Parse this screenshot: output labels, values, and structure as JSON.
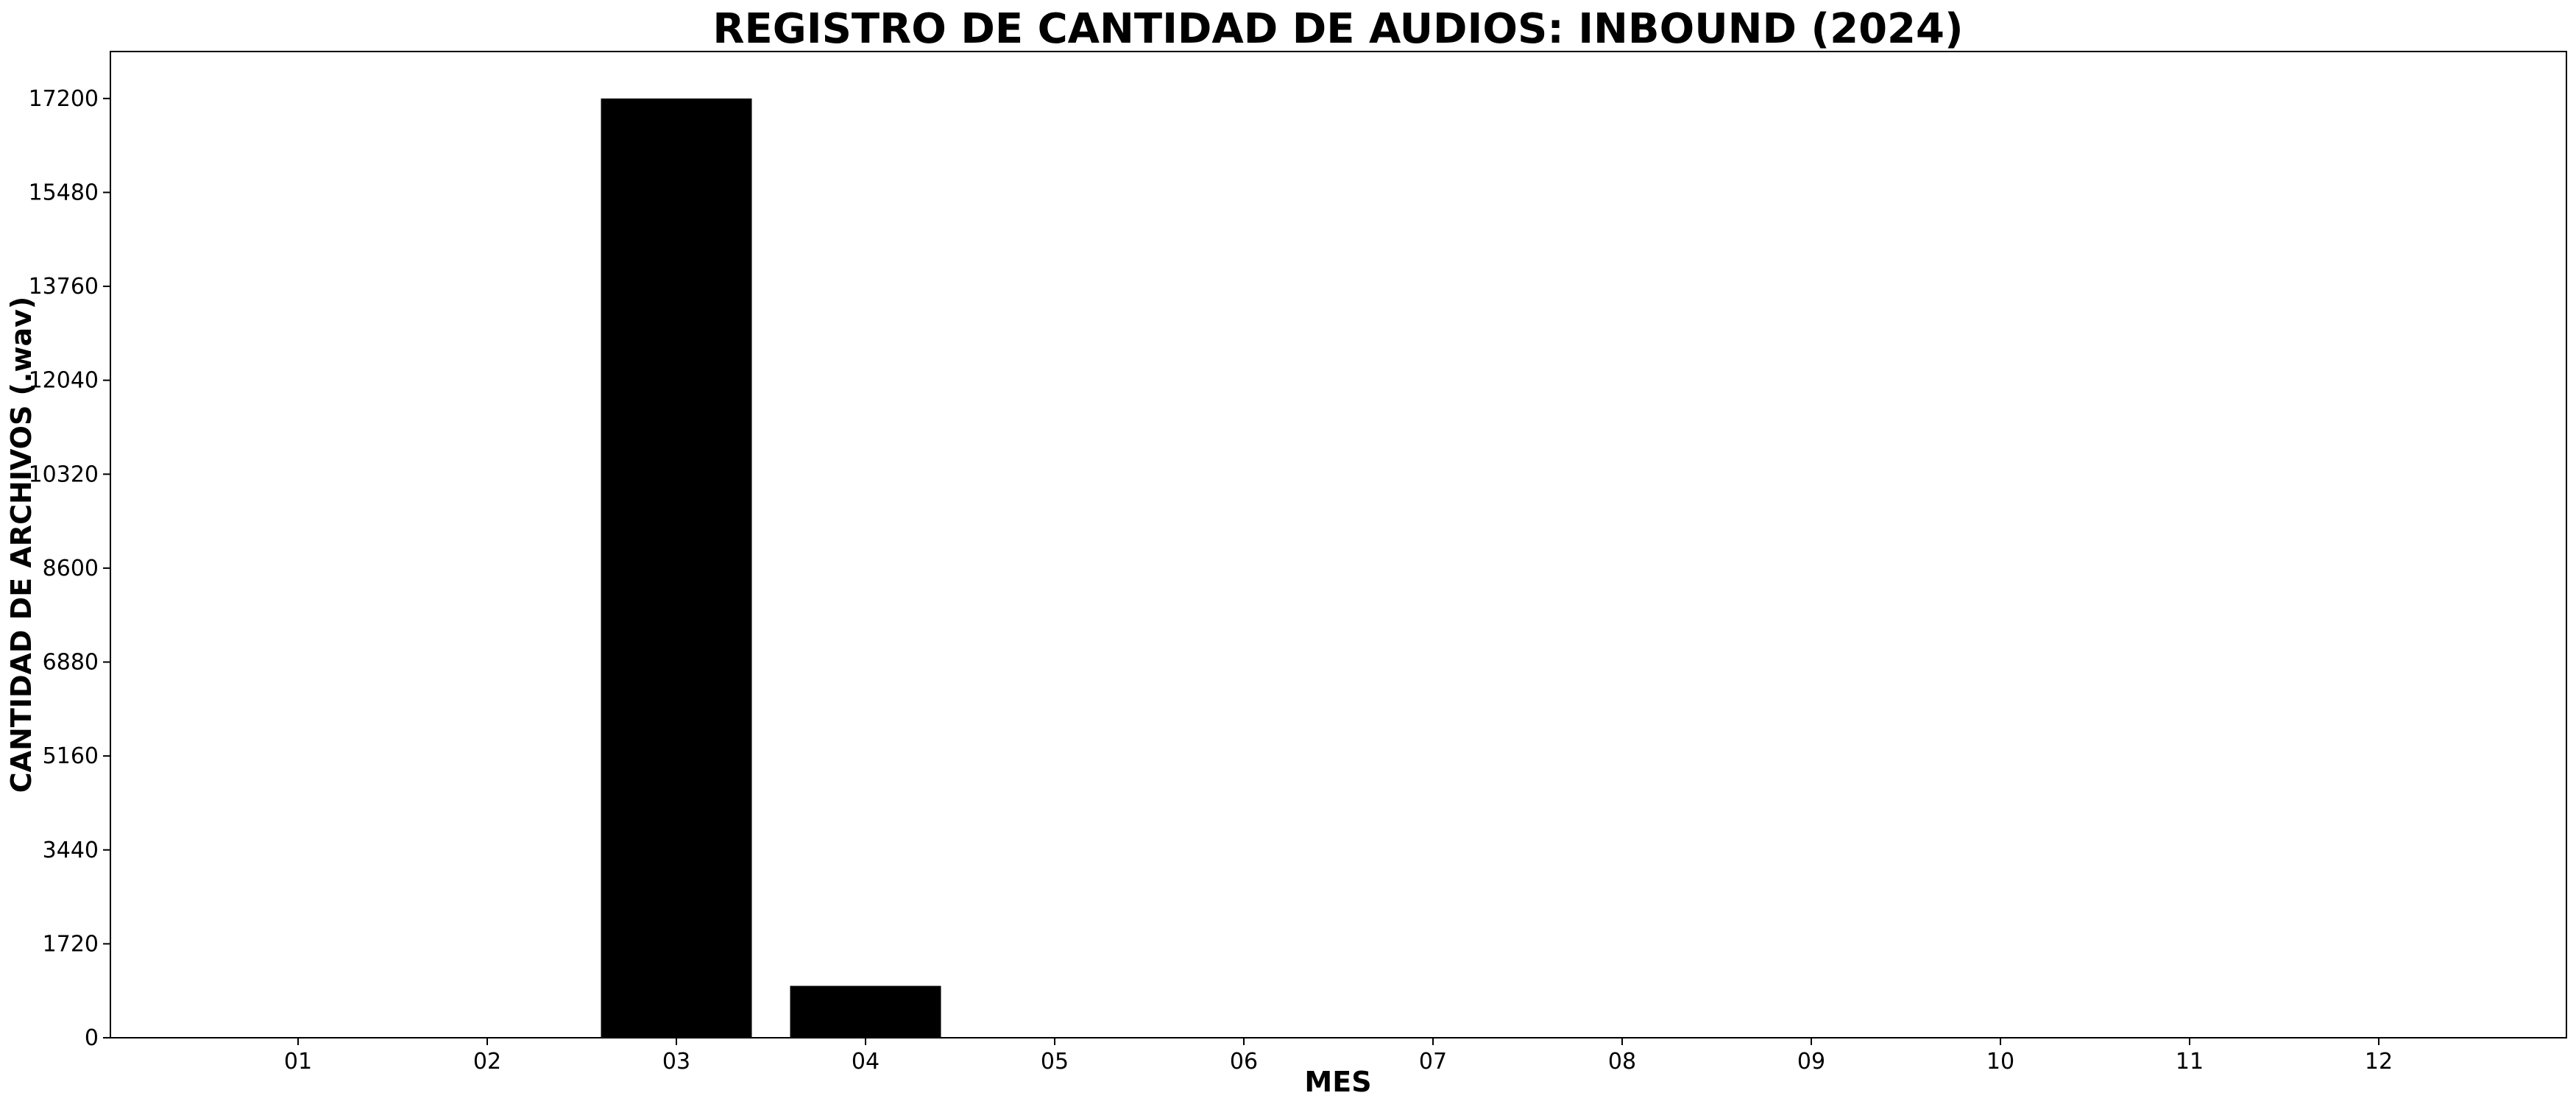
{
  "chart_data": {
    "type": "bar",
    "title": "REGISTRO DE CANTIDAD DE AUDIOS: INBOUND (2024)",
    "xlabel": "MES",
    "ylabel": "CANTIDAD DE ARCHIVOS (.wav)",
    "categories": [
      "01",
      "02",
      "03",
      "04",
      "05",
      "06",
      "07",
      "08",
      "09",
      "10",
      "11",
      "12"
    ],
    "values": [
      0,
      0,
      17200,
      950,
      0,
      0,
      0,
      0,
      0,
      0,
      0,
      0
    ],
    "yticks": [
      0,
      1720,
      3440,
      5160,
      6880,
      8600,
      10320,
      12040,
      13760,
      15480,
      17200
    ],
    "ylim": [
      0,
      18060
    ],
    "bar_color": "#000000",
    "grid": false,
    "legend": "none"
  }
}
